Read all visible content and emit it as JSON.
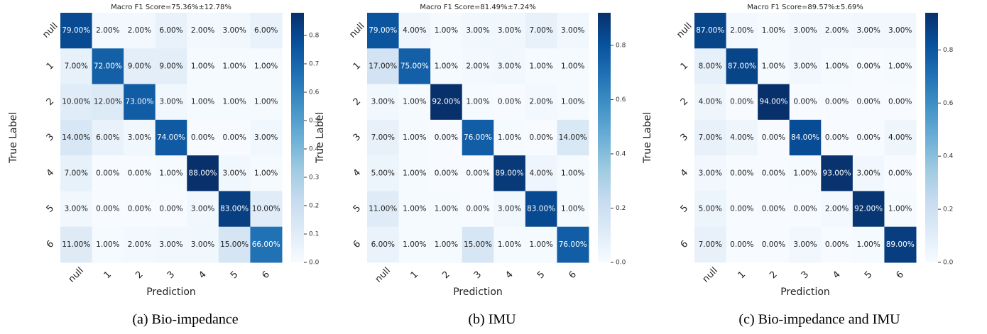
{
  "chart_data": [
    {
      "type": "heatmap",
      "title": "Macro F1 Score=75.36%±12.78%",
      "caption": "(a) Bio-impedance",
      "xlabel": "Prediction",
      "ylabel": "True Label",
      "categories": [
        "null",
        "1",
        "2",
        "3",
        "4",
        "5",
        "6"
      ],
      "z": [
        [
          0.79,
          0.02,
          0.02,
          0.06,
          0.02,
          0.03,
          0.06
        ],
        [
          0.07,
          0.72,
          0.09,
          0.09,
          0.01,
          0.01,
          0.01
        ],
        [
          0.1,
          0.12,
          0.73,
          0.03,
          0.01,
          0.01,
          0.01
        ],
        [
          0.14,
          0.06,
          0.03,
          0.74,
          0,
          0,
          0.03
        ],
        [
          0.07,
          0,
          0,
          0.01,
          0.88,
          0.03,
          0.01
        ],
        [
          0.03,
          0,
          0,
          0,
          0.03,
          0.83,
          0.1
        ],
        [
          0.11,
          0.01,
          0.02,
          0.03,
          0.03,
          0.15,
          0.66
        ]
      ],
      "value_labels": [
        [
          "79.00%",
          "2.00%",
          "2.00%",
          "6.00%",
          "2.00%",
          "3.00%",
          "6.00%"
        ],
        [
          "7.00%",
          "72.00%",
          "9.00%",
          "9.00%",
          "1.00%",
          "1.00%",
          "1.00%"
        ],
        [
          "10.00%",
          "12.00%",
          "73.00%",
          "3.00%",
          "1.00%",
          "1.00%",
          "1.00%"
        ],
        [
          "14.00%",
          "6.00%",
          "3.00%",
          "74.00%",
          "0.00%",
          "0.00%",
          "3.00%"
        ],
        [
          "7.00%",
          "0.00%",
          "0.00%",
          "1.00%",
          "88.00%",
          "3.00%",
          "1.00%"
        ],
        [
          "3.00%",
          "0.00%",
          "0.00%",
          "0.00%",
          "3.00%",
          "83.00%",
          "10.00%"
        ],
        [
          "11.00%",
          "1.00%",
          "2.00%",
          "3.00%",
          "3.00%",
          "15.00%",
          "66.00%"
        ]
      ],
      "zlim": [
        0,
        0.88
      ],
      "zticks": [
        {
          "value": 0,
          "label": "0.0"
        },
        0.1,
        0.2,
        0.3,
        0.4,
        0.5,
        0.6,
        0.7,
        0.8
      ],
      "colormap": "Blues"
    },
    {
      "type": "heatmap",
      "title": "Macro F1 Score=81.49%±7.24%",
      "caption": "(b) IMU",
      "xlabel": "Prediction",
      "ylabel": "True Label",
      "categories": [
        "null",
        "1",
        "2",
        "3",
        "4",
        "5",
        "6"
      ],
      "z": [
        [
          0.79,
          0.04,
          0.01,
          0.03,
          0.03,
          0.07,
          0.03
        ],
        [
          0.17,
          0.75,
          0.01,
          0.02,
          0.03,
          0.01,
          0.01
        ],
        [
          0.03,
          0.01,
          0.92,
          0.01,
          0,
          0.02,
          0.01
        ],
        [
          0.07,
          0.01,
          0,
          0.76,
          0.01,
          0,
          0.14
        ],
        [
          0.05,
          0.01,
          0,
          0,
          0.89,
          0.04,
          0.01
        ],
        [
          0.11,
          0.01,
          0.01,
          0,
          0.03,
          0.83,
          0.01
        ],
        [
          0.06,
          0.01,
          0.01,
          0.15,
          0.01,
          0.01,
          0.76
        ]
      ],
      "value_labels": [
        [
          "79.00%",
          "4.00%",
          "1.00%",
          "3.00%",
          "3.00%",
          "7.00%",
          "3.00%"
        ],
        [
          "17.00%",
          "75.00%",
          "1.00%",
          "2.00%",
          "3.00%",
          "1.00%",
          "1.00%"
        ],
        [
          "3.00%",
          "1.00%",
          "92.00%",
          "1.00%",
          "0.00%",
          "2.00%",
          "1.00%"
        ],
        [
          "7.00%",
          "1.00%",
          "0.00%",
          "76.00%",
          "1.00%",
          "0.00%",
          "14.00%"
        ],
        [
          "5.00%",
          "1.00%",
          "0.00%",
          "0.00%",
          "89.00%",
          "4.00%",
          "1.00%"
        ],
        [
          "11.00%",
          "1.00%",
          "1.00%",
          "0.00%",
          "3.00%",
          "83.00%",
          "1.00%"
        ],
        [
          "6.00%",
          "1.00%",
          "1.00%",
          "15.00%",
          "1.00%",
          "1.00%",
          "76.00%"
        ]
      ],
      "zlim": [
        0,
        0.92
      ],
      "zticks": [
        {
          "value": 0,
          "label": "0.0"
        },
        0.2,
        0.4,
        0.6,
        0.8
      ],
      "colormap": "Blues"
    },
    {
      "type": "heatmap",
      "title": "Macro F1 Score=89.57%±5.69%",
      "caption": "(c) Bio-impedance and IMU",
      "xlabel": "Prediction",
      "ylabel": "True Label",
      "categories": [
        "null",
        "1",
        "2",
        "3",
        "4",
        "5",
        "6"
      ],
      "z": [
        [
          0.87,
          0.02,
          0.01,
          0.03,
          0.02,
          0.03,
          0.03
        ],
        [
          0.08,
          0.87,
          0.01,
          0.03,
          0.01,
          0,
          0.01
        ],
        [
          0.04,
          0,
          0.94,
          0,
          0,
          0,
          0
        ],
        [
          0.07,
          0.04,
          0,
          0.84,
          0,
          0,
          0.04
        ],
        [
          0.03,
          0,
          0,
          0.01,
          0.93,
          0.03,
          0
        ],
        [
          0.05,
          0,
          0,
          0,
          0.02,
          0.92,
          0.01
        ],
        [
          0.07,
          0,
          0,
          0.03,
          0,
          0.01,
          0.89
        ]
      ],
      "value_labels": [
        [
          "87.00%",
          "2.00%",
          "1.00%",
          "3.00%",
          "2.00%",
          "3.00%",
          "3.00%"
        ],
        [
          "8.00%",
          "87.00%",
          "1.00%",
          "3.00%",
          "1.00%",
          "0.00%",
          "1.00%"
        ],
        [
          "4.00%",
          "0.00%",
          "94.00%",
          "0.00%",
          "0.00%",
          "0.00%",
          "0.00%"
        ],
        [
          "7.00%",
          "4.00%",
          "0.00%",
          "84.00%",
          "0.00%",
          "0.00%",
          "4.00%"
        ],
        [
          "3.00%",
          "0.00%",
          "0.00%",
          "1.00%",
          "93.00%",
          "3.00%",
          "0.00%"
        ],
        [
          "5.00%",
          "0.00%",
          "0.00%",
          "0.00%",
          "2.00%",
          "92.00%",
          "1.00%"
        ],
        [
          "7.00%",
          "0.00%",
          "0.00%",
          "3.00%",
          "0.00%",
          "1.00%",
          "89.00%"
        ]
      ],
      "zlim": [
        0,
        0.94
      ],
      "zticks": [
        {
          "value": 0,
          "label": "0.0"
        },
        0.2,
        0.4,
        0.6,
        0.8
      ],
      "colormap": "Blues"
    }
  ]
}
